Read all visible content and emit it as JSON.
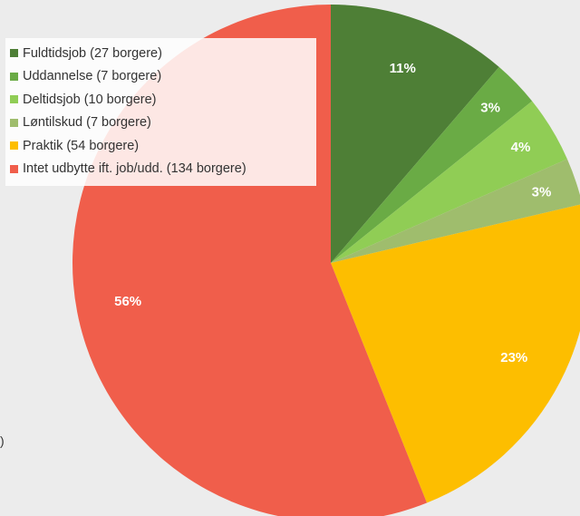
{
  "chart_data": {
    "type": "pie",
    "title": "",
    "legend_position": "top-left",
    "start_angle_deg": 0,
    "direction": "clockwise",
    "series": [
      {
        "label": "Fuldtidsjob (27 borgere)",
        "category": "Fuldtidsjob",
        "count": 27,
        "percent_label": "11%",
        "color": "#4e7f36"
      },
      {
        "label": "Uddannelse (7 borgere)",
        "category": "Uddannelse",
        "count": 7,
        "percent_label": "3%",
        "color": "#6aab45"
      },
      {
        "label": "Deltidsjob (10 borgere)",
        "category": "Deltidsjob",
        "count": 10,
        "percent_label": "4%",
        "color": "#90cd55"
      },
      {
        "label": "Løntilskud (7 borgere)",
        "category": "Løntilskud",
        "count": 7,
        "percent_label": "3%",
        "color": "#9fbd6d"
      },
      {
        "label": "Praktik (54 borgere)",
        "category": "Praktik",
        "count": 54,
        "percent_label": "23%",
        "color": "#fdbe00"
      },
      {
        "label": "Intet udbytte ift. job/udd. (134 borgere)",
        "category": "Intet udbytte ift. job/udd.",
        "count": 134,
        "percent_label": "56%",
        "color": "#f05e4b"
      }
    ]
  },
  "page": {
    "stray_mark": ")"
  }
}
